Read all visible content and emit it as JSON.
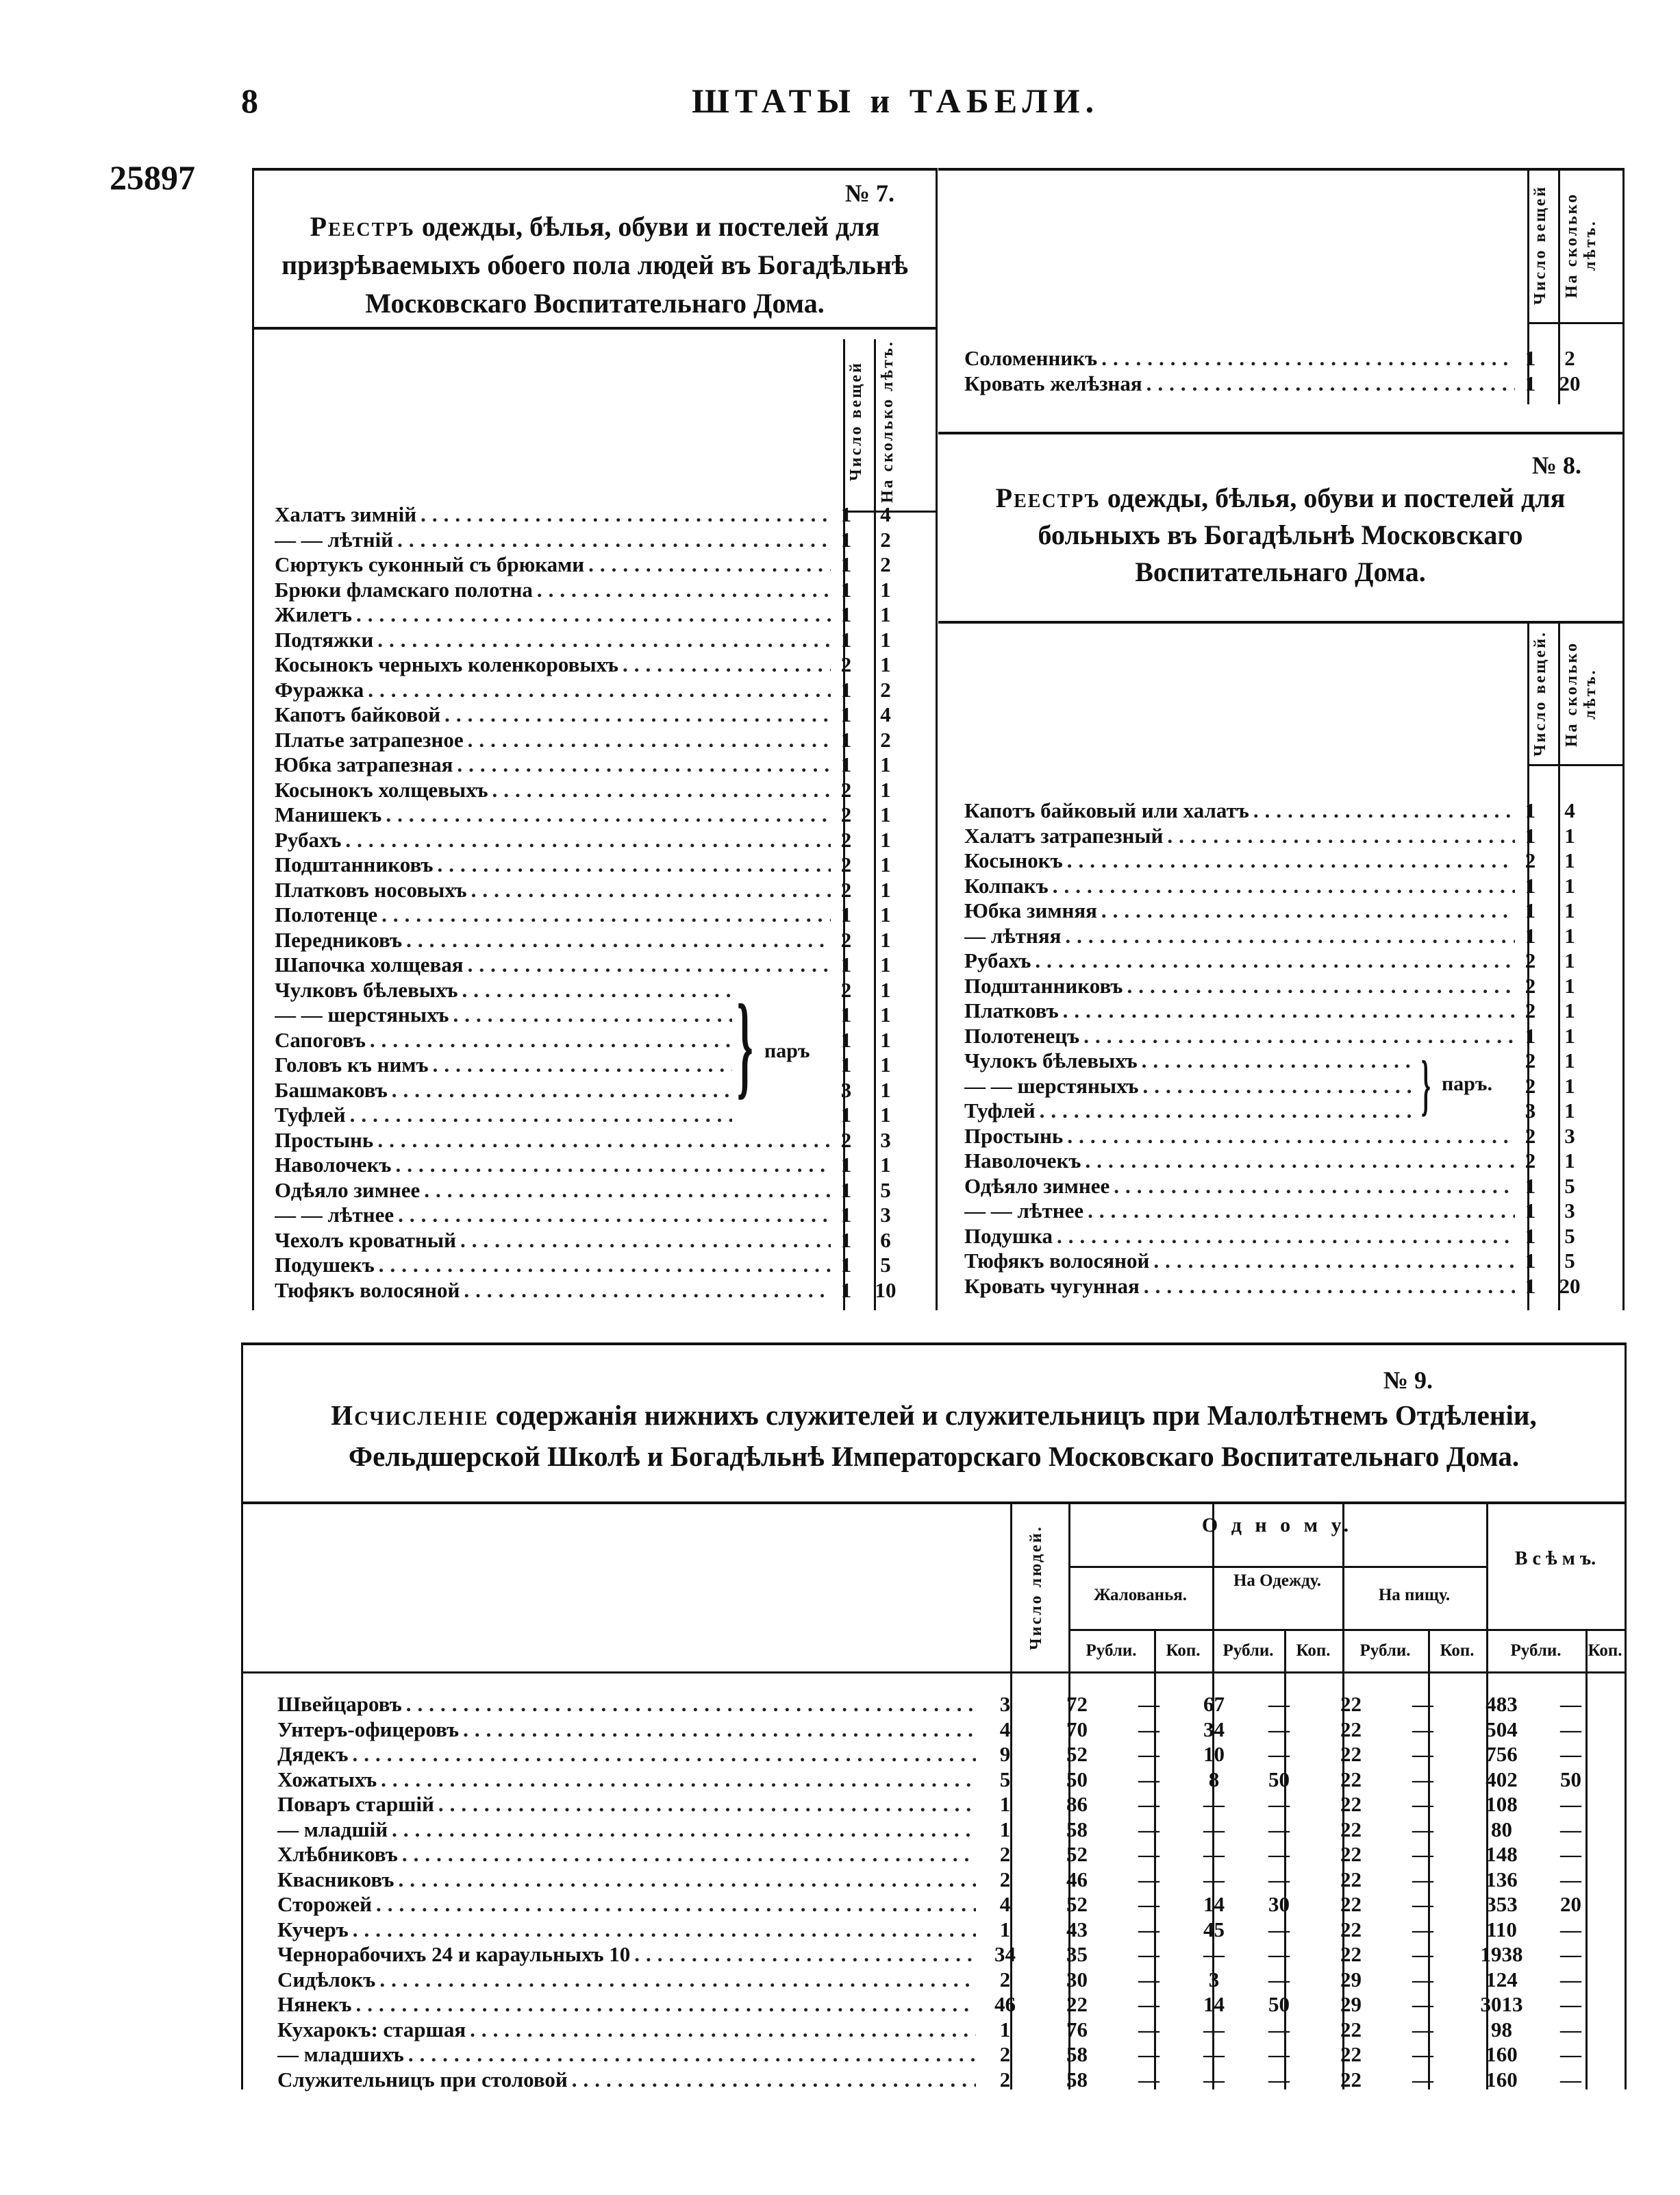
{
  "page": {
    "number": "8",
    "running_head": "ШТАТЫ и ТАБЕЛИ.",
    "document_number": "25897"
  },
  "t7": {
    "no": "№ 7.",
    "title_lead": "Реестръ",
    "title": "одежды, бѣлья, обуви и постелей для призрѣваемыхъ обоего пола людей въ Богадѣльнѣ Московскаго Воспитательнаго Дома.",
    "col_count": "Число вещей",
    "col_years": "На сколько лѣтъ.",
    "pair_label": "паръ",
    "items": [
      {
        "name": "Халатъ зимній",
        "count": "1",
        "years": "4"
      },
      {
        "name": "— — лѣтній",
        "count": "1",
        "years": "2"
      },
      {
        "name": "Сюртукъ суконный съ брюками",
        "count": "1",
        "years": "2"
      },
      {
        "name": "Брюки фламскаго полотна",
        "count": "1",
        "years": "1"
      },
      {
        "name": "Жилетъ",
        "count": "1",
        "years": "1"
      },
      {
        "name": "Подтяжки",
        "count": "1",
        "years": "1"
      },
      {
        "name": "Косынокъ черныхъ коленкоровыхъ",
        "count": "2",
        "years": "1"
      },
      {
        "name": "Фуражка",
        "count": "1",
        "years": "2"
      },
      {
        "name": "Капотъ байковой",
        "count": "1",
        "years": "4"
      },
      {
        "name": "Платье затрапезное",
        "count": "1",
        "years": "2"
      },
      {
        "name": "Юбка затрапезная",
        "count": "1",
        "years": "1"
      },
      {
        "name": "Косынокъ холщевыхъ",
        "count": "2",
        "years": "1"
      },
      {
        "name": "Манишекъ",
        "count": "2",
        "years": "1"
      },
      {
        "name": "Рубахъ",
        "count": "2",
        "years": "1"
      },
      {
        "name": "Подштанниковъ",
        "count": "2",
        "years": "1"
      },
      {
        "name": "Платковъ носовыхъ",
        "count": "2",
        "years": "1"
      },
      {
        "name": "Полотенце",
        "count": "1",
        "years": "1"
      },
      {
        "name": "Передниковъ",
        "count": "2",
        "years": "1"
      },
      {
        "name": "Шапочка холщевая",
        "count": "1",
        "years": "1"
      },
      {
        "name": "Чулковъ бѣлевыхъ",
        "count": "2",
        "years": "1"
      },
      {
        "name": "— — шерстяныхъ",
        "count": "1",
        "years": "1"
      },
      {
        "name": "Сапоговъ",
        "count": "1",
        "years": "1"
      },
      {
        "name": "Головъ къ нимъ",
        "count": "1",
        "years": "1"
      },
      {
        "name": "Башмаковъ",
        "count": "3",
        "years": "1"
      },
      {
        "name": "Туфлей",
        "count": "1",
        "years": "1"
      },
      {
        "name": "Простынь",
        "count": "2",
        "years": "3"
      },
      {
        "name": "Наволочекъ",
        "count": "1",
        "years": "1"
      },
      {
        "name": "Одѣяло зимнее",
        "count": "1",
        "years": "5"
      },
      {
        "name": "— — лѣтнее",
        "count": "1",
        "years": "3"
      },
      {
        "name": "Чехолъ кроватный",
        "count": "1",
        "years": "6"
      },
      {
        "name": "Подушекъ",
        "count": "1",
        "years": "5"
      },
      {
        "name": "Тюфякъ волосяной",
        "count": "1",
        "years": "10"
      }
    ],
    "continued": [
      {
        "name": "Соломенникъ",
        "count": "1",
        "years": "2"
      },
      {
        "name": "Кровать желѣзная",
        "count": "1",
        "years": "20"
      }
    ]
  },
  "t8": {
    "no": "№ 8.",
    "title_lead": "Реестръ",
    "title": "одежды, бѣлья, обуви и постелей для больныхъ въ Богадѣльнѣ Московскаго Воспитательнаго Дома.",
    "col_count": "Число вещей.",
    "col_years": "На сколько лѣтъ.",
    "pair_label": "паръ.",
    "items": [
      {
        "name": "Капотъ байковый или халатъ",
        "count": "1",
        "years": "4"
      },
      {
        "name": "Халатъ затрапезный",
        "count": "1",
        "years": "1"
      },
      {
        "name": "Косынокъ",
        "count": "2",
        "years": "1"
      },
      {
        "name": "Колпакъ",
        "count": "1",
        "years": "1"
      },
      {
        "name": "Юбка зимняя",
        "count": "1",
        "years": "1"
      },
      {
        "name": "— лѣтняя",
        "count": "1",
        "years": "1"
      },
      {
        "name": "Рубахъ",
        "count": "2",
        "years": "1"
      },
      {
        "name": "Подштанниковъ",
        "count": "2",
        "years": "1"
      },
      {
        "name": "Платковъ",
        "count": "2",
        "years": "1"
      },
      {
        "name": "Полотенецъ",
        "count": "1",
        "years": "1"
      },
      {
        "name": "Чулокъ бѣлевыхъ",
        "count": "2",
        "years": "1"
      },
      {
        "name": "— — шерстяныхъ",
        "count": "2",
        "years": "1"
      },
      {
        "name": "Туфлей",
        "count": "3",
        "years": "1"
      },
      {
        "name": "Простынь",
        "count": "2",
        "years": "3"
      },
      {
        "name": "Наволочекъ",
        "count": "2",
        "years": "1"
      },
      {
        "name": "Одѣяло зимнее",
        "count": "1",
        "years": "5"
      },
      {
        "name": "— — лѣтнее",
        "count": "1",
        "years": "3"
      },
      {
        "name": "Подушка",
        "count": "1",
        "years": "5"
      },
      {
        "name": "Тюфякъ волосяной",
        "count": "1",
        "years": "5"
      },
      {
        "name": "Кровать чугунная",
        "count": "1",
        "years": "20"
      }
    ]
  },
  "t9": {
    "no": "№ 9.",
    "title_lead": "Исчисленіе",
    "title": "содержанія нижнихъ служителей и служительницъ при Малолѣтнемъ Отдѣленіи, Фельдшерской Школѣ и Богадѣльнѣ Императорскаго Московскаго Воспитательнаго Дома.",
    "col_people": "Число людей.",
    "col_one": "О д н о м у.",
    "col_salary": "Жалованья.",
    "col_clothes": "На Одежду.",
    "col_food": "На пищу.",
    "col_all": "В с ѣ м ъ.",
    "rub": "Рубли.",
    "kop": "Коп.",
    "rows": [
      {
        "name": "Швейцаровъ",
        "n": "3",
        "sal_r": "72",
        "sal_k": "—",
        "cl_r": "67",
        "cl_k": "—",
        "fd_r": "22",
        "fd_k": "—",
        "all_r": "483",
        "all_k": "—"
      },
      {
        "name": "Унтеръ-офицеровъ",
        "n": "4",
        "sal_r": "70",
        "sal_k": "—",
        "cl_r": "34",
        "cl_k": "—",
        "fd_r": "22",
        "fd_k": "—",
        "all_r": "504",
        "all_k": "—"
      },
      {
        "name": "Дядекъ",
        "n": "9",
        "sal_r": "52",
        "sal_k": "—",
        "cl_r": "10",
        "cl_k": "—",
        "fd_r": "22",
        "fd_k": "—",
        "all_r": "756",
        "all_k": "—"
      },
      {
        "name": "Хожатыхъ",
        "n": "5",
        "sal_r": "50",
        "sal_k": "—",
        "cl_r": "8",
        "cl_k": "50",
        "fd_r": "22",
        "fd_k": "—",
        "all_r": "402",
        "all_k": "50"
      },
      {
        "name": "Поваръ старшій",
        "n": "1",
        "sal_r": "86",
        "sal_k": "—",
        "cl_r": "—",
        "cl_k": "—",
        "fd_r": "22",
        "fd_k": "—",
        "all_r": "108",
        "all_k": "—"
      },
      {
        "name": "— младшій",
        "n": "1",
        "sal_r": "58",
        "sal_k": "—",
        "cl_r": "—",
        "cl_k": "—",
        "fd_r": "22",
        "fd_k": "—",
        "all_r": "80",
        "all_k": "—"
      },
      {
        "name": "Хлѣбниковъ",
        "n": "2",
        "sal_r": "52",
        "sal_k": "—",
        "cl_r": "—",
        "cl_k": "—",
        "fd_r": "22",
        "fd_k": "—",
        "all_r": "148",
        "all_k": "—"
      },
      {
        "name": "Квасниковъ",
        "n": "2",
        "sal_r": "46",
        "sal_k": "—",
        "cl_r": "—",
        "cl_k": "—",
        "fd_r": "22",
        "fd_k": "—",
        "all_r": "136",
        "all_k": "—"
      },
      {
        "name": "Сторожей",
        "n": "4",
        "sal_r": "52",
        "sal_k": "—",
        "cl_r": "14",
        "cl_k": "30",
        "fd_r": "22",
        "fd_k": "—",
        "all_r": "353",
        "all_k": "20"
      },
      {
        "name": "Кучеръ",
        "n": "1",
        "sal_r": "43",
        "sal_k": "—",
        "cl_r": "45",
        "cl_k": "—",
        "fd_r": "22",
        "fd_k": "—",
        "all_r": "110",
        "all_k": "—"
      },
      {
        "name": "Чернорабочихъ 24 и караульныхъ 10",
        "n": "34",
        "sal_r": "35",
        "sal_k": "—",
        "cl_r": "—",
        "cl_k": "—",
        "fd_r": "22",
        "fd_k": "—",
        "all_r": "1938",
        "all_k": "—"
      },
      {
        "name": "Сидѣлокъ",
        "n": "2",
        "sal_r": "30",
        "sal_k": "—",
        "cl_r": "3",
        "cl_k": "—",
        "fd_r": "29",
        "fd_k": "—",
        "all_r": "124",
        "all_k": "—"
      },
      {
        "name": "Нянекъ",
        "n": "46",
        "sal_r": "22",
        "sal_k": "—",
        "cl_r": "14",
        "cl_k": "50",
        "fd_r": "29",
        "fd_k": "—",
        "all_r": "3013",
        "all_k": "—"
      },
      {
        "name": "Кухарокъ: старшая",
        "n": "1",
        "sal_r": "76",
        "sal_k": "—",
        "cl_r": "—",
        "cl_k": "—",
        "fd_r": "22",
        "fd_k": "—",
        "all_r": "98",
        "all_k": "—"
      },
      {
        "name": "— младшихъ",
        "n": "2",
        "sal_r": "58",
        "sal_k": "—",
        "cl_r": "—",
        "cl_k": "—",
        "fd_r": "22",
        "fd_k": "—",
        "all_r": "160",
        "all_k": "—"
      },
      {
        "name": "Служительницъ при столовой",
        "n": "2",
        "sal_r": "58",
        "sal_k": "—",
        "cl_r": "—",
        "cl_k": "—",
        "fd_r": "22",
        "fd_k": "—",
        "all_r": "160",
        "all_k": "—"
      }
    ]
  }
}
